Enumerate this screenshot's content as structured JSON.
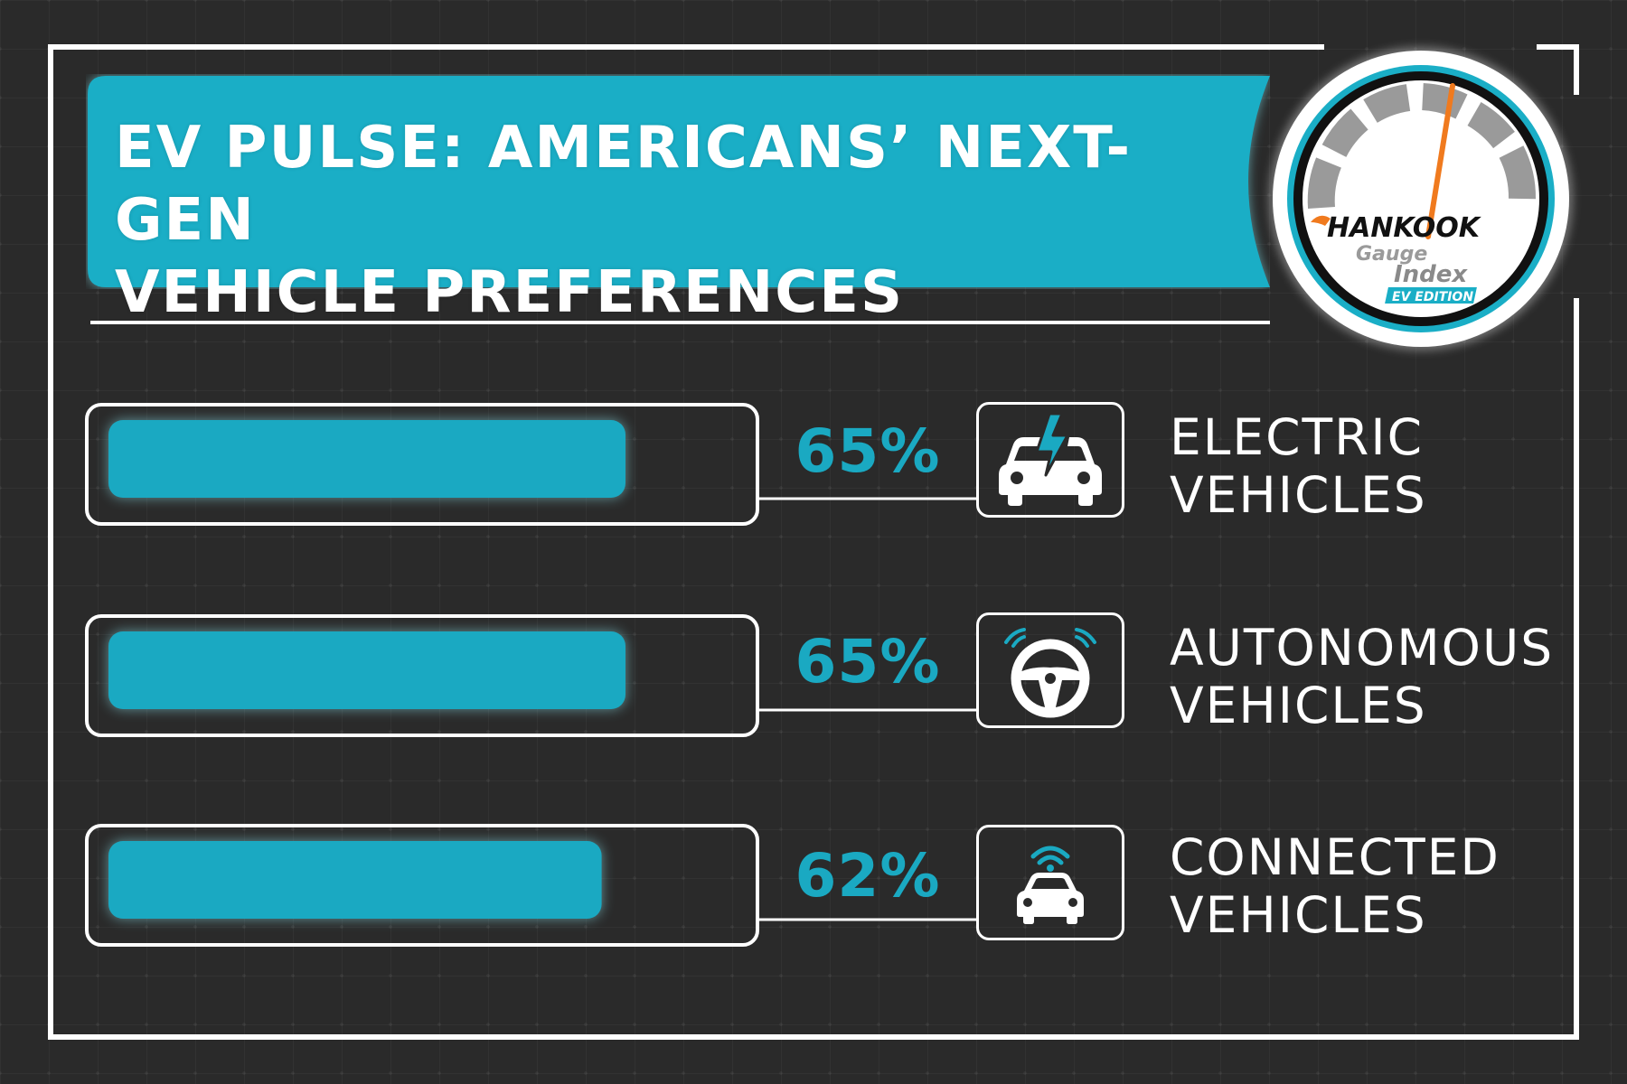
{
  "banner": {
    "title_line1": "EV PULSE: AMERICANS’ NEXT-GEN",
    "title_line2": "VEHICLE PREFERENCES"
  },
  "logo": {
    "brand": "HANKOOK",
    "line1": "Gauge",
    "line2": "Index",
    "edition": "EV EDITION"
  },
  "colors": {
    "accent": "#1aa9c2",
    "background": "#2a2a2a",
    "frame": "#ffffff",
    "needle": "#f07a1e"
  },
  "chart_data": {
    "type": "bar",
    "orientation": "horizontal",
    "title": "EV PULSE: AMERICANS’ NEXT-GEN VEHICLE PREFERENCES",
    "categories": [
      "ELECTRIC VEHICLES",
      "AUTONOMOUS VEHICLES",
      "CONNECTED VEHICLES"
    ],
    "values": [
      65,
      65,
      62
    ],
    "value_labels": [
      "65%",
      "65%",
      "62%"
    ],
    "xlim": [
      0,
      100
    ],
    "grid": false,
    "legend": "none",
    "rows": [
      {
        "label_line1": "ELECTRIC",
        "label_line2": "VEHICLES",
        "value": 65,
        "value_label": "65%",
        "icon": "electric-car-icon"
      },
      {
        "label_line1": "AUTONOMOUS",
        "label_line2": "VEHICLES",
        "value": 65,
        "value_label": "65%",
        "icon": "steering-wheel-icon"
      },
      {
        "label_line1": "CONNECTED",
        "label_line2": "VEHICLES",
        "value": 62,
        "value_label": "62%",
        "icon": "connected-car-icon"
      }
    ]
  }
}
